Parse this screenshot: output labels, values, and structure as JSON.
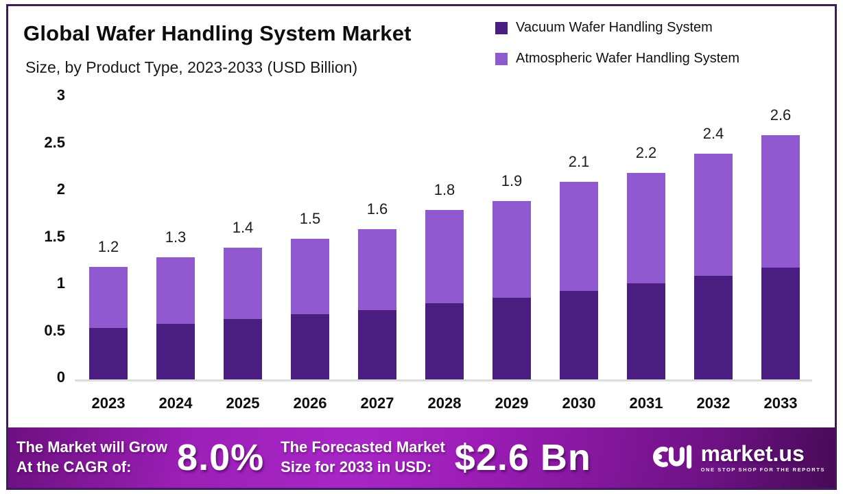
{
  "header": {
    "title": "Global Wafer Handling System Market",
    "subtitle": "Size, by Product Type, 2023-2033 (USD Billion)"
  },
  "legend": {
    "items": [
      {
        "label": "Vacuum Wafer Handling System",
        "color": "#4a1e80"
      },
      {
        "label": "Atmospheric Wafer Handling System",
        "color": "#9059d0"
      }
    ]
  },
  "chart_data": {
    "type": "bar",
    "stacked": true,
    "title": "Global Wafer Handling System Market Size, by Product Type, 2023-2033 (USD Billion)",
    "categories": [
      "2023",
      "2024",
      "2025",
      "2026",
      "2027",
      "2028",
      "2029",
      "2030",
      "2031",
      "2032",
      "2033"
    ],
    "series": [
      {
        "name": "Vacuum Wafer Handling System",
        "color": "#4a1e80",
        "values": [
          0.55,
          0.59,
          0.64,
          0.69,
          0.74,
          0.81,
          0.87,
          0.94,
          1.02,
          1.1,
          1.19
        ]
      },
      {
        "name": "Atmospheric Wafer Handling System",
        "color": "#9059d0",
        "values": [
          0.65,
          0.71,
          0.76,
          0.81,
          0.86,
          0.99,
          1.03,
          1.16,
          1.18,
          1.3,
          1.41
        ]
      }
    ],
    "totals": [
      1.2,
      1.3,
      1.4,
      1.5,
      1.6,
      1.8,
      1.9,
      2.1,
      2.2,
      2.4,
      2.6
    ],
    "total_labels": [
      "1.2",
      "1.3",
      "1.4",
      "1.5",
      "1.6",
      "1.8",
      "1.9",
      "2.1",
      "2.2",
      "2.4",
      "2.6"
    ],
    "xlabel": "",
    "ylabel": "",
    "ylim": [
      0,
      3
    ],
    "yticks": [
      0,
      0.5,
      1,
      1.5,
      2,
      2.5,
      3
    ],
    "ytick_labels": [
      "0",
      "0.5",
      "1",
      "1.5",
      "2",
      "2.5",
      "3"
    ],
    "grid": false,
    "legend_position": "top-right"
  },
  "footer": {
    "growth_line1": "The Market will Grow",
    "growth_line2": "At the CAGR of:",
    "cagr_value": "8.0%",
    "forecast_line1": "The Forecasted Market",
    "forecast_line2": "Size for 2033 in USD:",
    "forecast_value": "$2.6 Bn"
  },
  "brand": {
    "name": "market.us",
    "tagline": "ONE STOP SHOP FOR THE REPORTS"
  }
}
